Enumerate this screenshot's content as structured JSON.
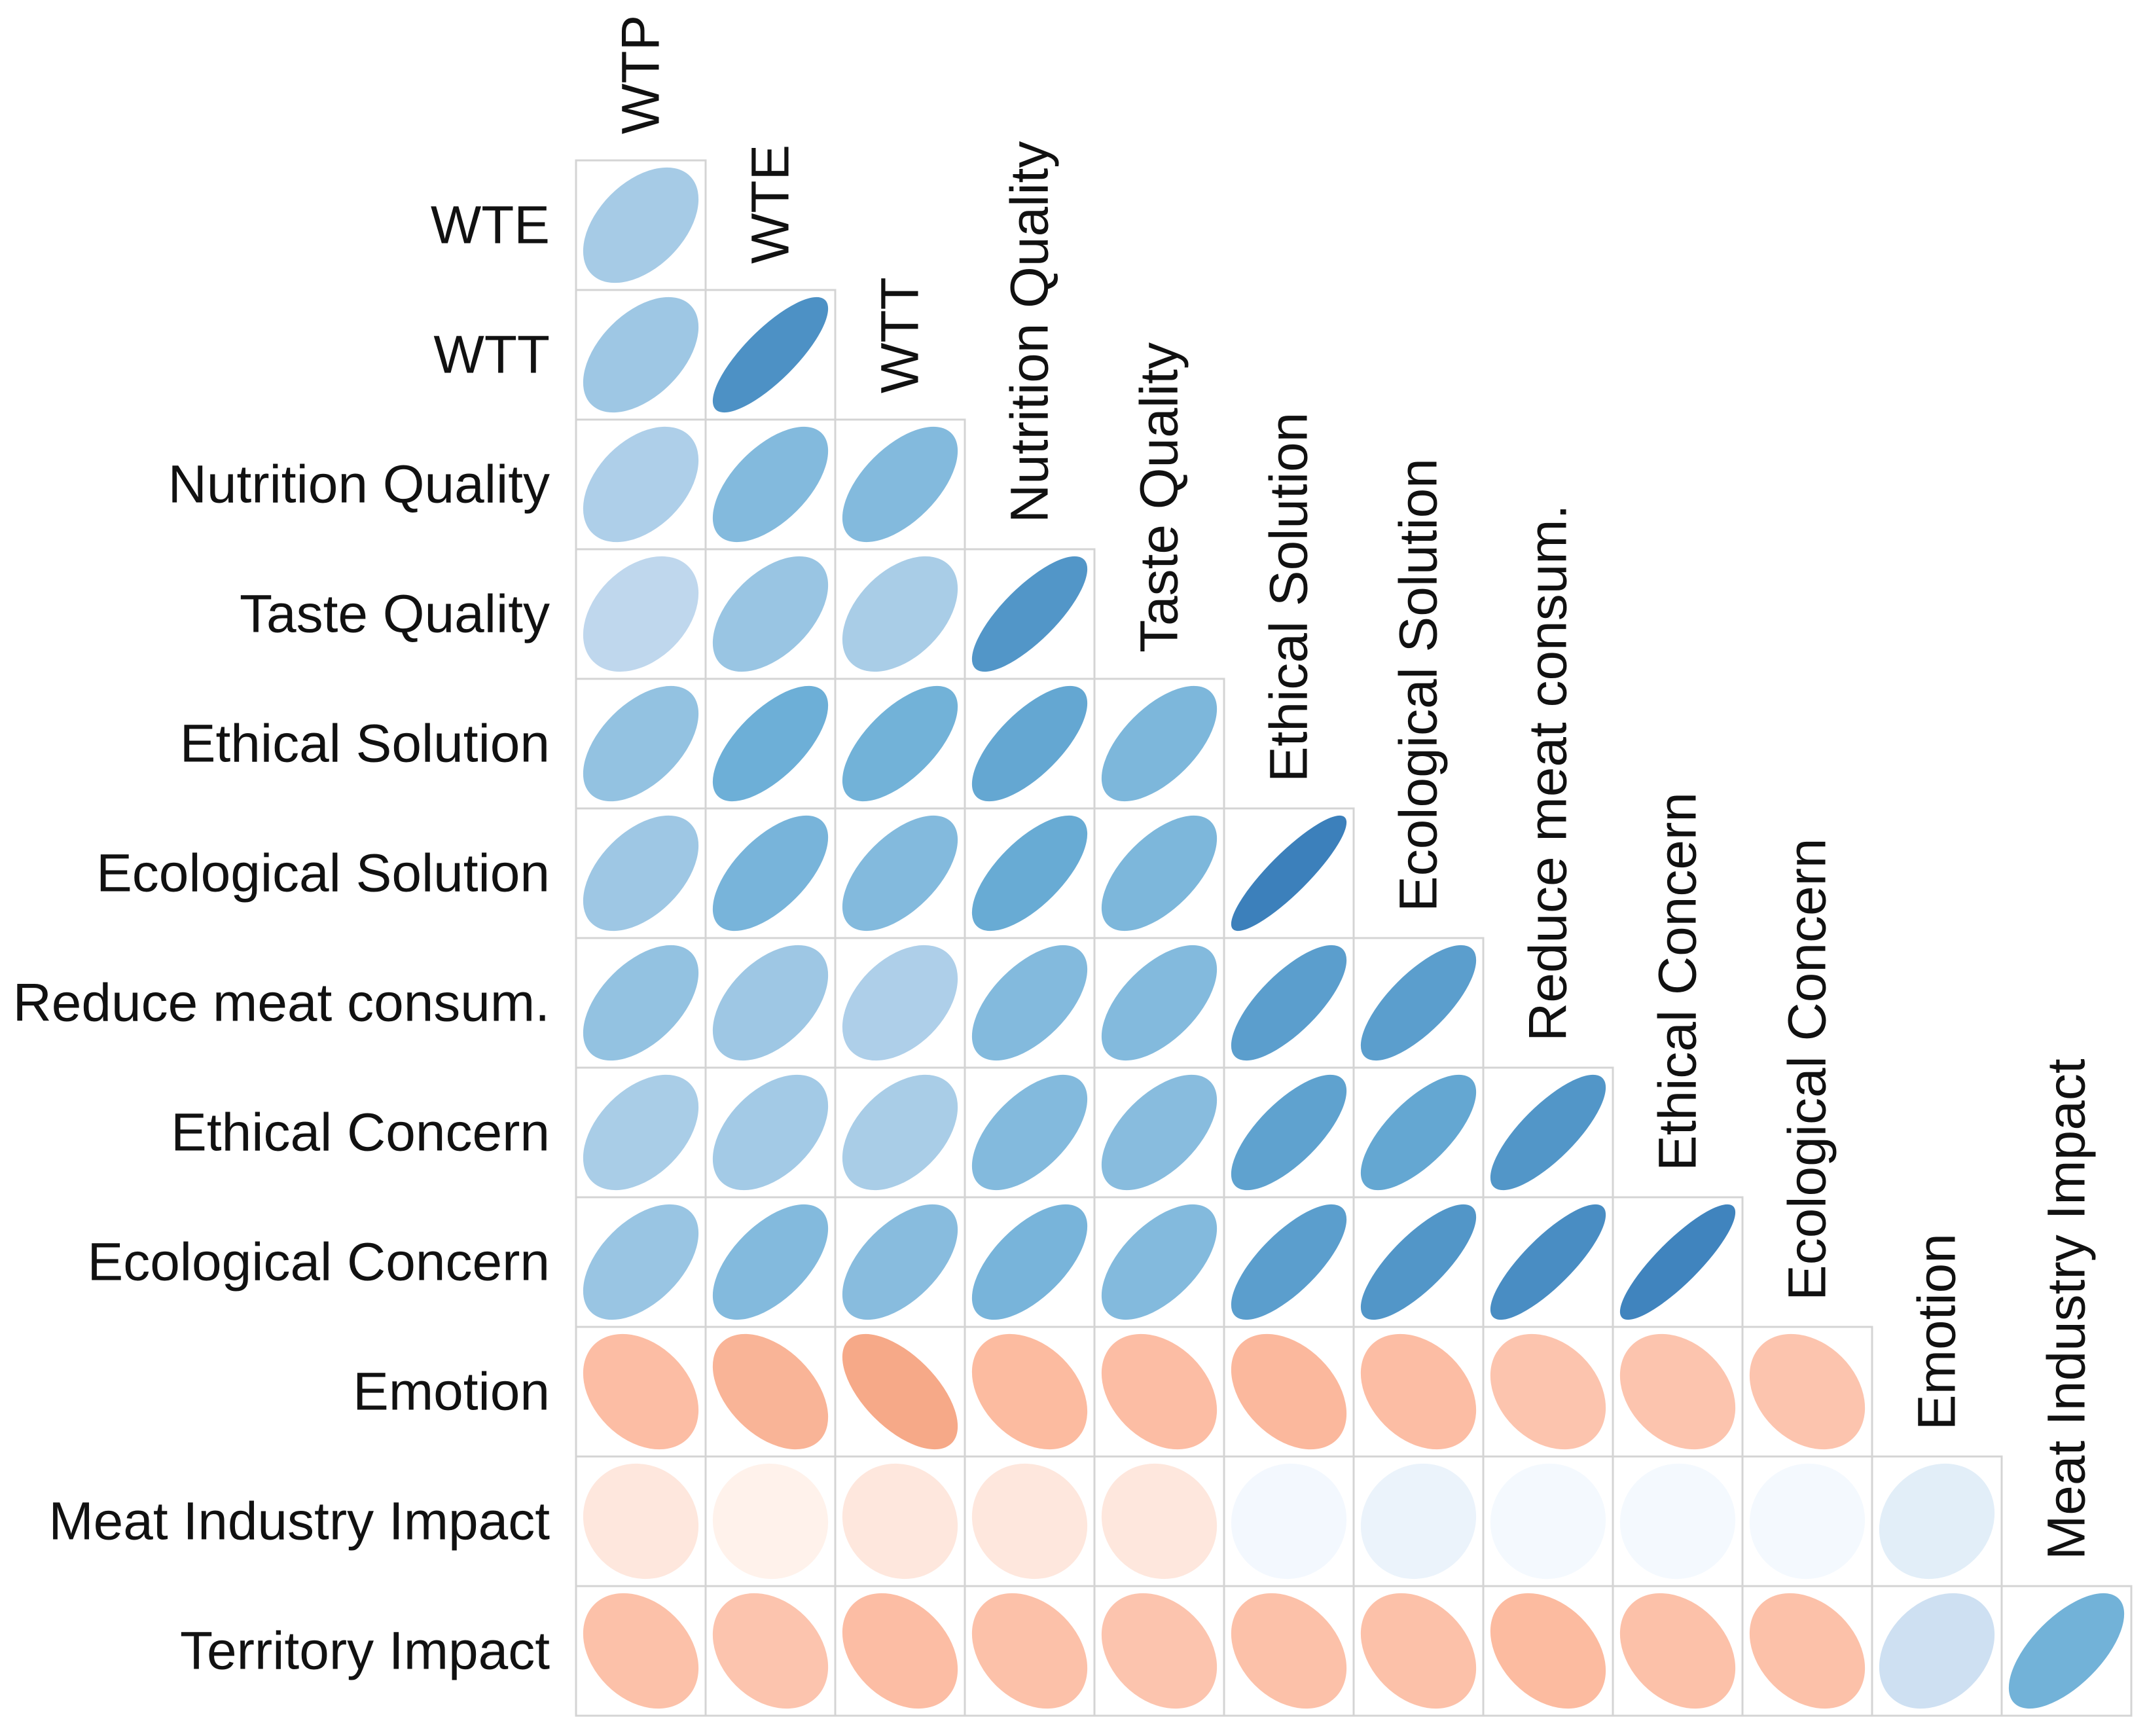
{
  "chart_data": {
    "type": "heatmap",
    "subtype": "correlation-ellipse-lower-triangle",
    "variables": [
      "WTP",
      "WTE",
      "WTT",
      "Nutrition Quality",
      "Taste Quality",
      "Ethical Solution",
      "Ecological Solution",
      "Reduce meat consum.",
      "Ethical Concern",
      "Ecological Concern",
      "Emotion",
      "Meat Industry Impact",
      "Territory Impact"
    ],
    "row_labels": [
      "WTE",
      "WTT",
      "Nutrition Quality",
      "Taste Quality",
      "Ethical Solution",
      "Ecological Solution",
      "Reduce meat consum.",
      "Ethical Concern",
      "Ecological Concern",
      "Emotion",
      "Meat Industry Impact",
      "Territory Impact"
    ],
    "column_labels": [
      "WTP",
      "WTE",
      "WTT",
      "Nutrition Quality",
      "Taste Quality",
      "Ethical Solution",
      "Ecological Solution",
      "Reduce meat consum.",
      "Ethical Concern",
      "Ecological Concern",
      "Emotion",
      "Meat Industry Impact"
    ],
    "correlations": [
      [
        0.45
      ],
      [
        0.48,
        0.8
      ],
      [
        0.42,
        0.58,
        0.58
      ],
      [
        0.36,
        0.5,
        0.44,
        0.78
      ],
      [
        0.52,
        0.66,
        0.64,
        0.7,
        0.6
      ],
      [
        0.48,
        0.62,
        0.58,
        0.68,
        0.6,
        0.88
      ],
      [
        0.52,
        0.48,
        0.42,
        0.58,
        0.58,
        0.74,
        0.74
      ],
      [
        0.44,
        0.46,
        0.44,
        0.58,
        0.56,
        0.72,
        0.7,
        0.78
      ],
      [
        0.5,
        0.58,
        0.56,
        0.62,
        0.58,
        0.74,
        0.78,
        0.82,
        0.86
      ],
      [
        -0.32,
        -0.44,
        -0.6,
        -0.34,
        -0.32,
        -0.38,
        -0.32,
        -0.28,
        -0.28,
        -0.28
      ],
      [
        -0.08,
        -0.02,
        -0.08,
        -0.08,
        -0.08,
        0.03,
        0.08,
        0.02,
        0.02,
        0.02,
        0.14
      ],
      [
        -0.3,
        -0.28,
        -0.32,
        -0.3,
        -0.28,
        -0.3,
        -0.3,
        -0.34,
        -0.3,
        -0.3,
        0.28,
        0.64
      ]
    ],
    "color_scale": {
      "positive": [
        "#f7fbff",
        "#c6dbef",
        "#6baed6",
        "#2166ac"
      ],
      "negative": [
        "#fff5f0",
        "#fcbba1",
        "#f4a582",
        "#d6604d"
      ],
      "range": [
        -1,
        1
      ]
    }
  }
}
